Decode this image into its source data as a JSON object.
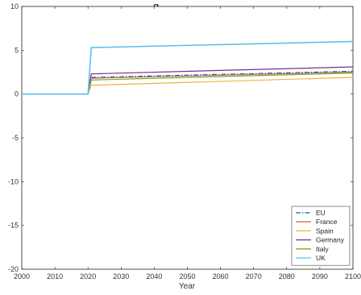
{
  "chart_data": {
    "type": "line",
    "title": "g",
    "xlabel": "Year",
    "ylabel": "",
    "xlim": [
      2000,
      2100
    ],
    "ylim": [
      -20,
      10
    ],
    "x_ticks": [
      "2000",
      "2010",
      "2020",
      "2030",
      "2040",
      "2050",
      "2060",
      "2070",
      "2080",
      "2090",
      "2100"
    ],
    "y_ticks": [
      "-20",
      "-15",
      "-10",
      "-5",
      "0",
      "5",
      "10"
    ],
    "grid": false,
    "legend_position": "bottom-right",
    "series": [
      {
        "name": "EU",
        "color": "#1f5f8b",
        "dash": "dashdot",
        "points": [
          [
            2000,
            0
          ],
          [
            2020,
            0
          ],
          [
            2021,
            1.9
          ],
          [
            2100,
            2.6
          ]
        ]
      },
      {
        "name": "France",
        "color": "#d36a5f",
        "dash": "solid",
        "points": [
          [
            2000,
            0
          ],
          [
            2020,
            0
          ],
          [
            2021,
            1.8
          ],
          [
            2100,
            2.5
          ]
        ]
      },
      {
        "name": "Spain",
        "color": "#f2b33d",
        "dash": "solid",
        "points": [
          [
            2000,
            0
          ],
          [
            2020,
            0
          ],
          [
            2021,
            1.0
          ],
          [
            2100,
            1.9
          ]
        ]
      },
      {
        "name": "Germany",
        "color": "#7a2e8e",
        "dash": "solid",
        "points": [
          [
            2000,
            0
          ],
          [
            2020,
            0
          ],
          [
            2021,
            2.3
          ],
          [
            2100,
            3.1
          ]
        ]
      },
      {
        "name": "Italy",
        "color": "#77ac30",
        "dash": "solid",
        "points": [
          [
            2000,
            0
          ],
          [
            2020,
            0
          ],
          [
            2021,
            1.6
          ],
          [
            2100,
            2.4
          ]
        ]
      },
      {
        "name": "UK",
        "color": "#5bc0eb",
        "dash": "solid",
        "points": [
          [
            2000,
            0
          ],
          [
            2020,
            0
          ],
          [
            2021,
            5.3
          ],
          [
            2100,
            6.0
          ]
        ]
      }
    ]
  }
}
